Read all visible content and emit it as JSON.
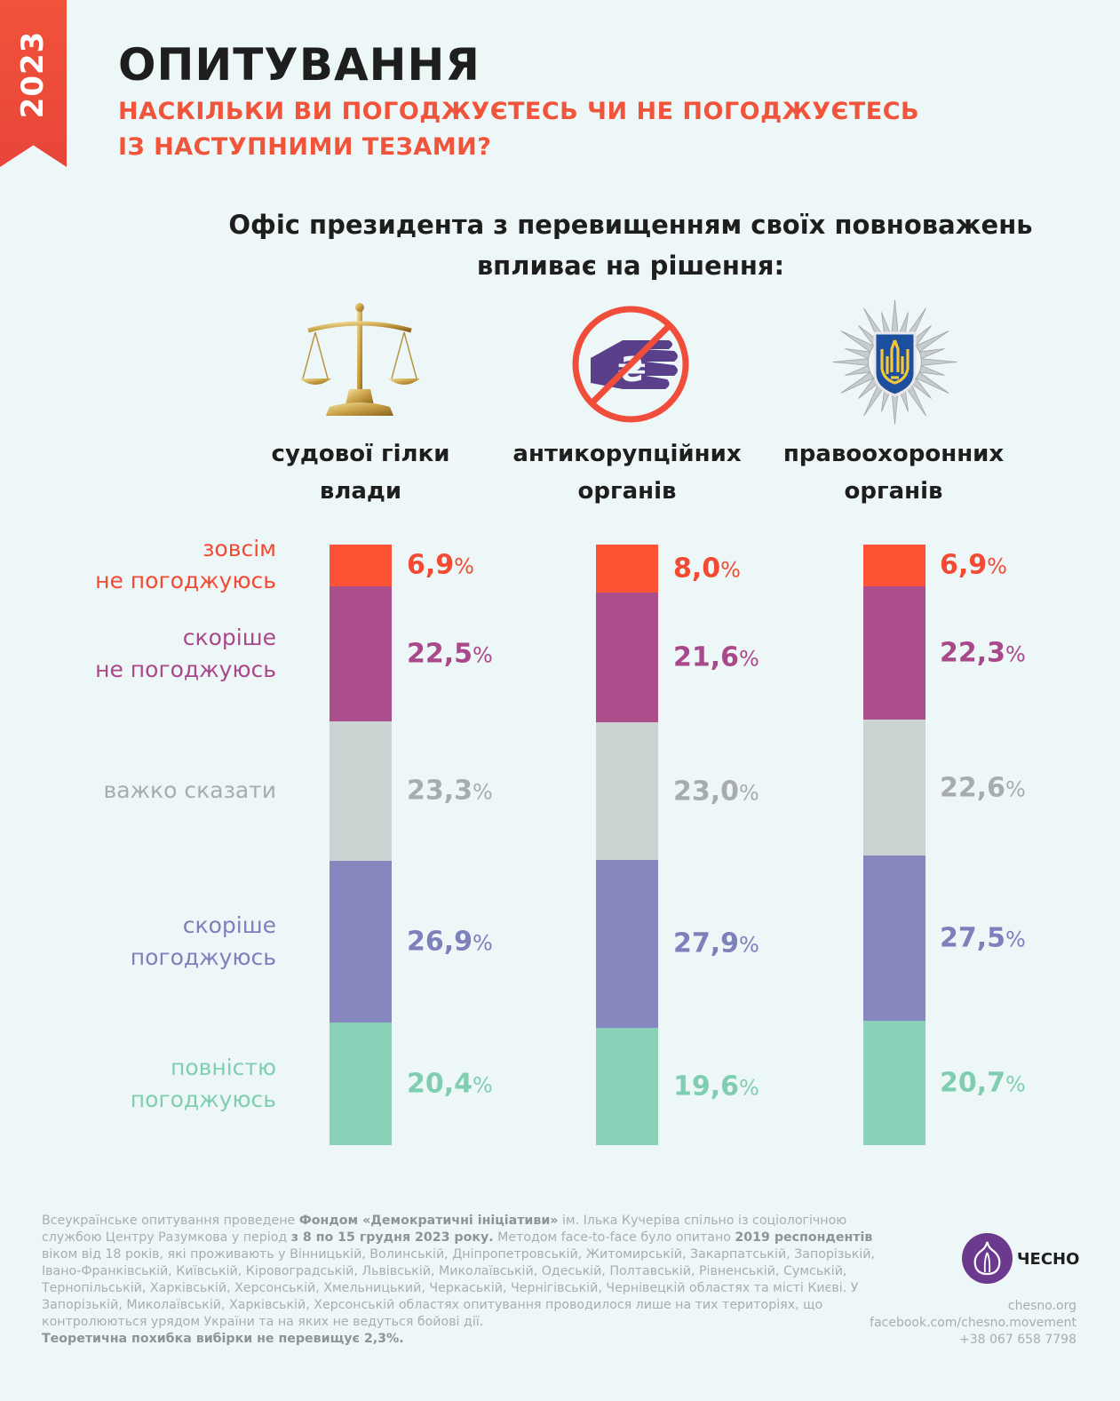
{
  "badge": {
    "year": "2023"
  },
  "header": {
    "title": "ОПИТУВАННЯ",
    "subtitle_lines": [
      "НАСКІЛЬКИ ВИ ПОГОДЖУЄТЕСЬ ЧИ НЕ ПОГОДЖУЄТЕСЬ",
      "ІЗ НАСТУПНИМИ ТЕЗАМИ?"
    ]
  },
  "question": {
    "lines": [
      "Офіс президента з перевищенням своїх повноважень",
      "впливає на рішення:"
    ]
  },
  "columns": [
    {
      "title_lines": [
        "судової гілки",
        "влади"
      ],
      "icon": "scales-of-justice-icon"
    },
    {
      "title_lines": [
        "антикорупційних",
        "органів"
      ],
      "icon": "no-bribery-hand-icon"
    },
    {
      "title_lines": [
        "правоохоронних",
        "органів"
      ],
      "icon": "police-star-trident-icon"
    }
  ],
  "rows": [
    {
      "label_lines": [
        "зовсім",
        "не погоджуюсь"
      ],
      "color": "#fe5234",
      "value_color": "#f24a33"
    },
    {
      "label_lines": [
        "скоріше",
        "не погоджуюсь"
      ],
      "color": "#ad4e8c",
      "value_color": "#a9488a"
    },
    {
      "label_lines": [
        "важко сказати"
      ],
      "color": "#cbd4d2",
      "value_color": "#a8acac"
    },
    {
      "label_lines": [
        "скоріше",
        "погоджуюсь"
      ],
      "color": "#8587be",
      "value_color": "#7d80bb"
    },
    {
      "label_lines": [
        "повністю",
        "погоджуюсь"
      ],
      "color": "#8bd1b7",
      "value_color": "#80ceb2"
    }
  ],
  "chart_data": {
    "type": "bar",
    "stacked": true,
    "unit": "%",
    "categories": [
      "судової гілки влади",
      "антикорупційних органів",
      "правоохоронних органів"
    ],
    "series": [
      {
        "name": "зовсім не погоджуюсь",
        "values": [
          6.9,
          8.0,
          6.9
        ],
        "labels": [
          "6,9",
          "8,0",
          "6,9"
        ]
      },
      {
        "name": "скоріше не погоджуюсь",
        "values": [
          22.5,
          21.6,
          22.3
        ],
        "labels": [
          "22,5",
          "21,6",
          "22,3"
        ]
      },
      {
        "name": "важко сказати",
        "values": [
          23.3,
          23.0,
          22.6
        ],
        "labels": [
          "23,3",
          "23,0",
          "22,6"
        ]
      },
      {
        "name": "скоріше погоджуюсь",
        "values": [
          26.9,
          27.9,
          27.5
        ],
        "labels": [
          "26,9",
          "27,9",
          "27,5"
        ]
      },
      {
        "name": "повністю погоджуюсь",
        "values": [
          20.4,
          19.6,
          20.7
        ],
        "labels": [
          "20,4",
          "19,6",
          "20,7"
        ]
      }
    ],
    "legend": "left"
  },
  "footnote": {
    "segments": [
      {
        "t": "Всеукраїнське опитування проведене ",
        "b": false
      },
      {
        "t": "Фондом «Демократичні ініціативи»",
        "b": true
      },
      {
        "t": " ім. Ілька Кучеріва спільно із соціологічною службою Центру Разумкова у період ",
        "b": false
      },
      {
        "t": "з 8 по 15 грудня 2023 року.",
        "b": true
      },
      {
        "t": " Методом face-to-face було опитано ",
        "b": false
      },
      {
        "t": "2019 респондентів",
        "b": true
      },
      {
        "t": " віком від 18 років, які проживають у Вінницькій, Волинській, Дніпропетровській, Житомирській, Закарпатській, Запорізькій, Івано-Франківській, Київській, Кіровоградській, Львівській, Миколаївській, Одеській, Полтавській, Рівненській, Сумській, Тернопільській, Харківській, Херсонській, Хмельницький, Черкаській, Чернігівській, Чернівецкій областях та місті Києві. У Запорізькій, Миколаївській, Харківській, Херсонській областях опитування проводилося лише на тих територіях, що контролюються урядом України та на яких не ведуться бойові дії.",
        "b": false
      },
      {
        "t": "Теоретична похибка вибірки не перевищує 2,3%.",
        "b": true,
        "block": true
      }
    ]
  },
  "logo": {
    "text": "ЧЕСНО",
    "icon": "garlic-logo-icon"
  },
  "contacts": [
    "chesno.org",
    "facebook.com/chesno.movement",
    "+38 067 658 7798"
  ]
}
